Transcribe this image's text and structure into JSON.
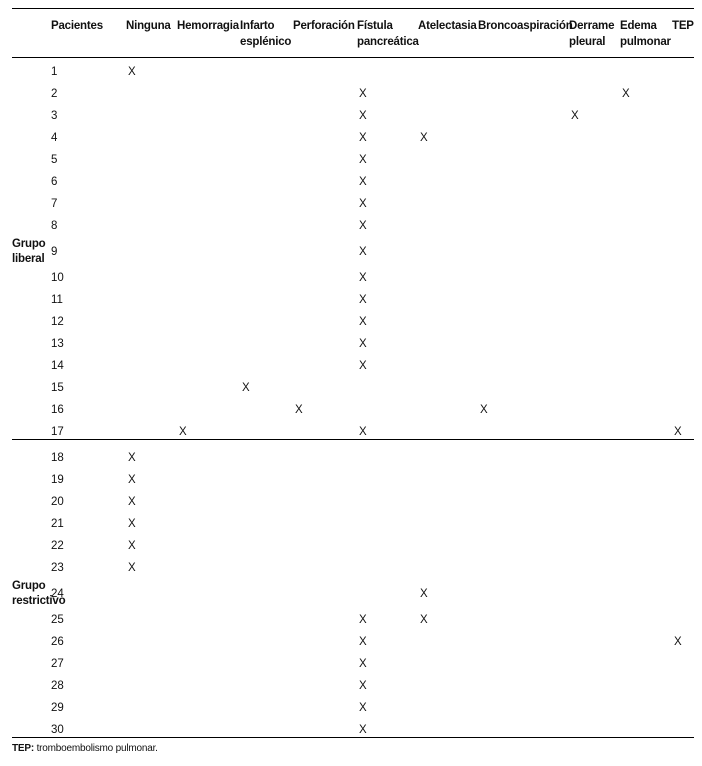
{
  "headers": [
    "Pacientes",
    "Ninguna",
    "Hemorragia",
    "Infarto esplénico",
    "Perforación",
    "Fístula pancreática",
    "Atelectasia",
    "Broncoaspiración",
    "Derrame pleural",
    "Edema pulmonar",
    "TEP"
  ],
  "header_lines": [
    [
      "",
      ""
    ],
    [
      "Pacientes",
      ""
    ],
    [
      "Ninguna",
      ""
    ],
    [
      "Hemorragia",
      ""
    ],
    [
      "Infarto",
      "esplénico"
    ],
    [
      "Perforación",
      ""
    ],
    [
      "Fístula",
      "pancreática"
    ],
    [
      "Atelectasia",
      ""
    ],
    [
      "Broncoaspiración",
      ""
    ],
    [
      "Derrame",
      "pleural"
    ],
    [
      "Edema",
      "pulmonar"
    ],
    [
      "TEP",
      ""
    ]
  ],
  "mark": "X",
  "groups": [
    {
      "label_lines": [
        "Grupo",
        "liberal"
      ],
      "rows": [
        {
          "patient": "1",
          "marks": [
            0
          ]
        },
        {
          "patient": "2",
          "marks": [
            4,
            8
          ]
        },
        {
          "patient": "3",
          "marks": [
            4,
            7
          ]
        },
        {
          "patient": "4",
          "marks": [
            4,
            5
          ]
        },
        {
          "patient": "5",
          "marks": [
            4
          ]
        },
        {
          "patient": "6",
          "marks": [
            4
          ]
        },
        {
          "patient": "7",
          "marks": [
            4
          ]
        },
        {
          "patient": "8",
          "marks": [
            4
          ]
        },
        {
          "patient": "9",
          "marks": [
            4
          ]
        },
        {
          "patient": "10",
          "marks": [
            4
          ]
        },
        {
          "patient": "11",
          "marks": [
            4
          ]
        },
        {
          "patient": "12",
          "marks": [
            4
          ]
        },
        {
          "patient": "13",
          "marks": [
            4
          ]
        },
        {
          "patient": "14",
          "marks": [
            4
          ]
        },
        {
          "patient": "15",
          "marks": [
            2
          ]
        },
        {
          "patient": "16",
          "marks": [
            3,
            6
          ]
        },
        {
          "patient": "17",
          "marks": [
            1,
            4,
            9
          ]
        }
      ]
    },
    {
      "label_lines": [
        "Grupo",
        "restrictivo"
      ],
      "rows": [
        {
          "patient": "18",
          "marks": [
            0
          ]
        },
        {
          "patient": "19",
          "marks": [
            0
          ]
        },
        {
          "patient": "20",
          "marks": [
            0
          ]
        },
        {
          "patient": "21",
          "marks": [
            0
          ]
        },
        {
          "patient": "22",
          "marks": [
            0
          ]
        },
        {
          "patient": "23",
          "marks": [
            0
          ]
        },
        {
          "patient": "24",
          "marks": [
            5
          ]
        },
        {
          "patient": "25",
          "marks": [
            4,
            5
          ]
        },
        {
          "patient": "26",
          "marks": [
            4,
            9
          ]
        },
        {
          "patient": "27",
          "marks": [
            4
          ]
        },
        {
          "patient": "28",
          "marks": [
            4
          ]
        },
        {
          "patient": "29",
          "marks": [
            4
          ]
        },
        {
          "patient": "30",
          "marks": [
            4
          ]
        }
      ]
    }
  ],
  "footnote": {
    "abbr": "TEP:",
    "text": " tromboembolismo pulmonar."
  }
}
